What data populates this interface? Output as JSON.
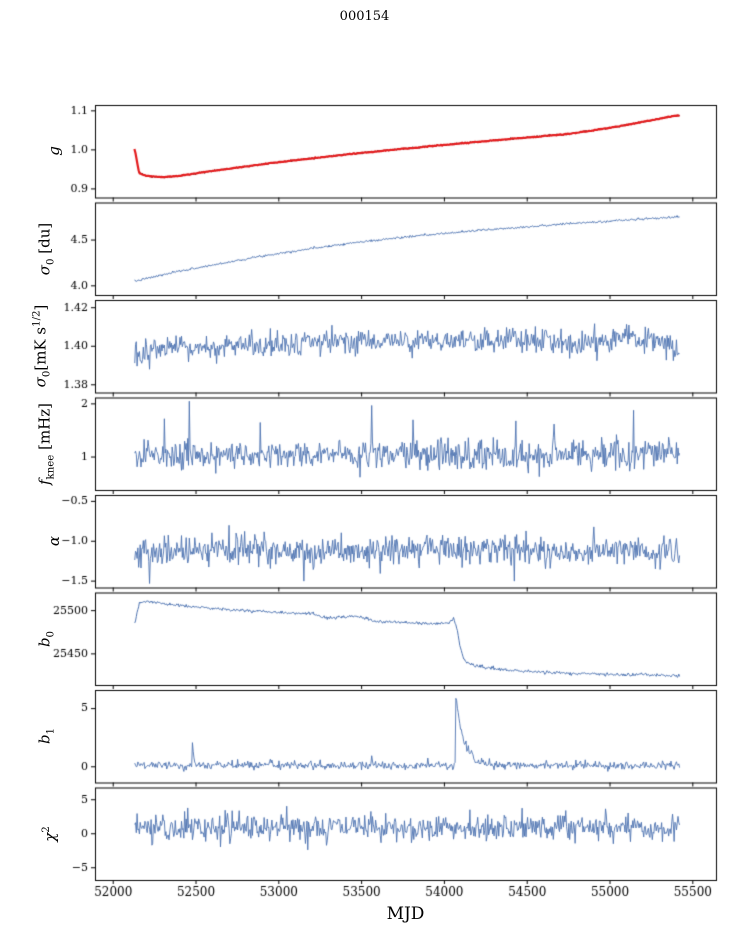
{
  "title": "000154",
  "chart_data": {
    "type": "line",
    "title": "000154",
    "xlabel": "MJD",
    "xlim": [
      51890,
      55640
    ],
    "x_ticks": [
      52000,
      52500,
      53000,
      53500,
      54000,
      54500,
      55000,
      55500
    ],
    "x_tick_labels": [
      "52000",
      "52500",
      "53000",
      "53500",
      "54000",
      "54500",
      "55000",
      "55500"
    ],
    "panels": [
      {
        "name": "gain",
        "ylabel_html": "<i>g</i>",
        "ylim": [
          0.878,
          1.115
        ],
        "yticks": [
          0.9,
          1.0,
          1.1
        ],
        "ytick_labels": [
          "0.9",
          "1.0",
          "1.1"
        ],
        "series": [
          {
            "color": "#1a1a1a",
            "width": 1,
            "seed": 3,
            "n": 660,
            "x_start": 52150,
            "x_end": 55420,
            "noise_std": 0.0012,
            "keypoints": [
              [
                52150,
                0.943
              ],
              [
                52200,
                0.9335
              ],
              [
                52300,
                0.93
              ],
              [
                52400,
                0.9335
              ],
              [
                52500,
                0.94
              ],
              [
                52650,
                0.949
              ],
              [
                52800,
                0.9575
              ],
              [
                52950,
                0.966
              ],
              [
                53100,
                0.9735
              ],
              [
                53250,
                0.9808
              ],
              [
                53400,
                0.9878
              ],
              [
                53550,
                0.9945
              ],
              [
                53700,
                1.0008
              ],
              [
                53850,
                1.0068
              ],
              [
                54000,
                1.0128
              ],
              [
                54150,
                1.0185
              ],
              [
                54300,
                1.0243
              ],
              [
                54450,
                1.03
              ],
              [
                54600,
                1.0355
              ],
              [
                54750,
                1.0408
              ],
              [
                54900,
                1.05
              ],
              [
                55050,
                1.06
              ],
              [
                55200,
                1.072
              ],
              [
                55300,
                1.08
              ],
              [
                55400,
                1.088
              ]
            ]
          },
          {
            "color": "#e31a1c",
            "width": 2.2,
            "seed": 5,
            "n": 520,
            "x_start": 52128,
            "x_end": 55420,
            "noise_std": 0.0005,
            "keypoints": [
              [
                52128,
                1.002
              ],
              [
                52136,
                0.99
              ],
              [
                52144,
                0.97
              ],
              [
                52152,
                0.95
              ],
              [
                52158,
                0.94
              ],
              [
                52200,
                0.933
              ],
              [
                52300,
                0.93
              ],
              [
                52400,
                0.9335
              ],
              [
                52500,
                0.94
              ],
              [
                52650,
                0.949
              ],
              [
                52800,
                0.9575
              ],
              [
                52950,
                0.966
              ],
              [
                53100,
                0.9735
              ],
              [
                53250,
                0.9808
              ],
              [
                53400,
                0.9878
              ],
              [
                53550,
                0.9945
              ],
              [
                53700,
                1.0008
              ],
              [
                53850,
                1.0068
              ],
              [
                54000,
                1.0128
              ],
              [
                54150,
                1.0185
              ],
              [
                54300,
                1.0243
              ],
              [
                54450,
                1.03
              ],
              [
                54600,
                1.0355
              ],
              [
                54750,
                1.0408
              ],
              [
                54900,
                1.05
              ],
              [
                55050,
                1.06
              ],
              [
                55200,
                1.072
              ],
              [
                55300,
                1.08
              ],
              [
                55400,
                1.088
              ]
            ]
          }
        ]
      },
      {
        "name": "sigma0-du",
        "ylabel_html": "<i>&#963;</i><sub>0</sub> [du]",
        "ylim": [
          3.9,
          4.91
        ],
        "yticks": [
          4.0,
          4.5
        ],
        "ytick_labels": [
          "4.0",
          "4.5"
        ],
        "series": [
          {
            "color": "#4c72b0",
            "width": 1,
            "seed": 7,
            "n": 660,
            "x_start": 52130,
            "x_end": 55420,
            "noise_std": 0.006,
            "keypoints": [
              [
                52130,
                4.05
              ],
              [
                52250,
                4.1
              ],
              [
                52400,
                4.16
              ],
              [
                52550,
                4.21
              ],
              [
                52700,
                4.26
              ],
              [
                52850,
                4.31
              ],
              [
                53000,
                4.355
              ],
              [
                53150,
                4.395
              ],
              [
                53300,
                4.435
              ],
              [
                53450,
                4.47
              ],
              [
                53600,
                4.5
              ],
              [
                53750,
                4.53
              ],
              [
                53900,
                4.555
              ],
              [
                54050,
                4.58
              ],
              [
                54200,
                4.605
              ],
              [
                54350,
                4.625
              ],
              [
                54500,
                4.645
              ],
              [
                54650,
                4.665
              ],
              [
                54800,
                4.685
              ],
              [
                54950,
                4.7
              ],
              [
                55100,
                4.72
              ],
              [
                55250,
                4.735
              ],
              [
                55400,
                4.75
              ]
            ]
          }
        ]
      },
      {
        "name": "sigma0-mK",
        "ylabel_html": "<i>&#963;</i><sub>0</sub>[mK s<sup>1/2</sup>]",
        "ylim": [
          1.376,
          1.424
        ],
        "yticks": [
          1.38,
          1.4,
          1.42
        ],
        "ytick_labels": [
          "1.38",
          "1.40",
          "1.42"
        ],
        "series": [
          {
            "color": "#4c72b0",
            "width": 0.9,
            "seed": 13,
            "n": 700,
            "x_start": 52130,
            "x_end": 55420,
            "noise_std": 0.0033,
            "clamp": [
              1.3785,
              1.4215
            ],
            "keypoints": [
              [
                52130,
                1.3935
              ],
              [
                52250,
                1.3985
              ],
              [
                52450,
                1.3985
              ],
              [
                52700,
                1.3995
              ],
              [
                53000,
                1.401
              ],
              [
                53300,
                1.402
              ],
              [
                53600,
                1.403
              ],
              [
                53900,
                1.4025
              ],
              [
                54200,
                1.402
              ],
              [
                54500,
                1.403
              ],
              [
                54800,
                1.402
              ],
              [
                55000,
                1.403
              ],
              [
                55200,
                1.404
              ],
              [
                55320,
                1.401
              ],
              [
                55420,
                1.3985
              ]
            ]
          }
        ]
      },
      {
        "name": "f-knee",
        "ylabel_html": "<i>f</i><sub>knee</sub> [mHz]",
        "ylim": [
          0.38,
          2.12
        ],
        "yticks": [
          1,
          2
        ],
        "ytick_labels": [
          "1",
          "2"
        ],
        "series": [
          {
            "color": "#4c72b0",
            "width": 0.9,
            "seed": 17,
            "n": 700,
            "x_start": 52130,
            "x_end": 55420,
            "noise_std": 0.14,
            "clamp": [
              0.62,
              2.08
            ],
            "keypoints": [
              [
                52130,
                1.03
              ],
              [
                55420,
                1.05
              ]
            ],
            "spikes": [
              [
                52460,
                2.05
              ],
              [
                52310,
                1.72
              ],
              [
                52890,
                1.65
              ],
              [
                53560,
                1.97
              ],
              [
                53810,
                1.7
              ],
              [
                54430,
                1.68
              ],
              [
                54660,
                1.62
              ],
              [
                55140,
                1.88
              ]
            ]
          }
        ]
      },
      {
        "name": "alpha",
        "ylabel_html": "<i>&#945;</i>",
        "ylim": [
          -1.58,
          -0.42
        ],
        "yticks": [
          -1.5,
          -1.0,
          -0.5
        ],
        "ytick_labels": [
          "−1.5",
          "−1.0",
          "−0.5"
        ],
        "series": [
          {
            "color": "#4c72b0",
            "width": 0.9,
            "seed": 19,
            "n": 700,
            "x_start": 52130,
            "x_end": 55420,
            "noise_std": 0.095,
            "clamp": [
              -1.54,
              -0.72
            ],
            "keypoints": [
              [
                52130,
                -1.13
              ],
              [
                53000,
                -1.12
              ],
              [
                54000,
                -1.11
              ],
              [
                55420,
                -1.12
              ]
            ],
            "spikes": [
              [
                52220,
                -1.53
              ],
              [
                52700,
                -0.8
              ],
              [
                53150,
                -1.5
              ],
              [
                54420,
                -1.5
              ],
              [
                54900,
                -0.82
              ]
            ]
          }
        ]
      },
      {
        "name": "b0",
        "ylabel_html": "<i>b</i><sub>0</sub>",
        "ylim": [
          25414,
          25521
        ],
        "yticks": [
          25450,
          25500
        ],
        "ytick_labels": [
          "25450",
          "25500"
        ],
        "series": [
          {
            "color": "#4c72b0",
            "width": 1,
            "seed": 23,
            "n": 700,
            "x_start": 52130,
            "x_end": 55420,
            "noise_std": 0.9,
            "keypoints": [
              [
                52130,
                25484
              ],
              [
                52145,
                25498
              ],
              [
                52160,
                25509
              ],
              [
                52200,
                25511
              ],
              [
                52300,
                25508
              ],
              [
                52400,
                25506
              ],
              [
                52500,
                25504
              ],
              [
                52650,
                25502
              ],
              [
                52800,
                25500
              ],
              [
                52950,
                25499
              ],
              [
                53100,
                25497
              ],
              [
                53200,
                25496
              ],
              [
                53280,
                25492
              ],
              [
                53360,
                25492
              ],
              [
                53450,
                25493
              ],
              [
                53530,
                25492
              ],
              [
                53580,
                25487
              ],
              [
                53650,
                25487
              ],
              [
                53750,
                25486
              ],
              [
                53850,
                25485
              ],
              [
                53950,
                25485
              ],
              [
                54030,
                25486
              ],
              [
                54055,
                25491
              ],
              [
                54075,
                25480
              ],
              [
                54095,
                25458
              ],
              [
                54115,
                25445
              ],
              [
                54140,
                25440
              ],
              [
                54180,
                25437
              ],
              [
                54250,
                25434
              ],
              [
                54350,
                25432
              ],
              [
                54450,
                25430
              ],
              [
                54570,
                25429
              ],
              [
                54700,
                25428
              ],
              [
                54850,
                25427
              ],
              [
                55000,
                25426
              ],
              [
                55150,
                25426
              ],
              [
                55300,
                25425
              ],
              [
                55420,
                25425
              ]
            ]
          }
        ]
      },
      {
        "name": "b1",
        "ylabel_html": "<i>b</i><sub>1</sub>",
        "ylim": [
          -1.35,
          6.6
        ],
        "yticks": [
          0,
          5
        ],
        "ytick_labels": [
          "0",
          "5"
        ],
        "series": [
          {
            "color": "#4c72b0",
            "width": 0.9,
            "seed": 29,
            "n": 700,
            "x_start": 52130,
            "x_end": 55420,
            "noise_std": 0.17,
            "clamp": [
              -0.4,
              6.4
            ],
            "keypoints": [
              [
                52130,
                0.14
              ],
              [
                55420,
                0.12
              ]
            ],
            "events": [
              {
                "x": 54068,
                "peak": 6.1,
                "decay": 48
              },
              {
                "x": 52478,
                "peak": 1.95,
                "decay": 7
              }
            ],
            "spikes": [
              [
                52950,
                0.65
              ],
              [
                53250,
                0.6
              ],
              [
                53560,
                0.95
              ],
              [
                53900,
                0.75
              ],
              [
                54850,
                0.6
              ]
            ]
          }
        ]
      },
      {
        "name": "chi2",
        "ylabel_html": "<i>&#967;</i><sup>2</sup>",
        "ylim": [
          -6.8,
          6.8
        ],
        "yticks": [
          -5,
          0,
          5
        ],
        "ytick_labels": [
          "−5",
          "0",
          "5"
        ],
        "series": [
          {
            "color": "#4c72b0",
            "width": 0.9,
            "seed": 31,
            "n": 700,
            "x_start": 52130,
            "x_end": 55420,
            "noise_std": 1.0,
            "clamp": [
              -4.0,
              4.8
            ],
            "keypoints": [
              [
                52130,
                0.9
              ],
              [
                55420,
                1.0
              ]
            ]
          }
        ]
      }
    ]
  }
}
